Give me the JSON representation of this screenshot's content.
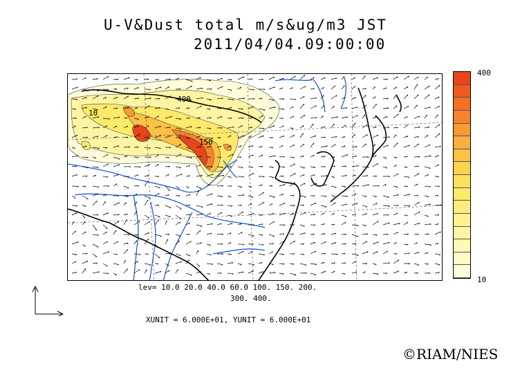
{
  "title": {
    "line1": "U-V&Dust total m/s&ug/m3 JST",
    "line2": "2011/04/04.09:00:00"
  },
  "colorbar": {
    "max_label": "400",
    "min_label": "10",
    "colors": [
      "#e8461a",
      "#f05a1e",
      "#f46e24",
      "#f7842c",
      "#f99a34",
      "#fbae3c",
      "#fcc145",
      "#fdd24e",
      "#fde05c",
      "#fde96a",
      "#fdee7c",
      "#fdf28f",
      "#fdf5a3",
      "#fdf8b6",
      "#fefac8",
      "#fefcda"
    ]
  },
  "contour_labels": [
    "400",
    "10",
    "150"
  ],
  "levels": {
    "line1": "lev= 10.0 20.0 40.0 60.0 100. 150. 200.",
    "line2": "300. 400."
  },
  "units": "XUNIT = 6.000E+01, YUNIT = 6.000E+01",
  "copyright": "©RIAM/NIES"
}
